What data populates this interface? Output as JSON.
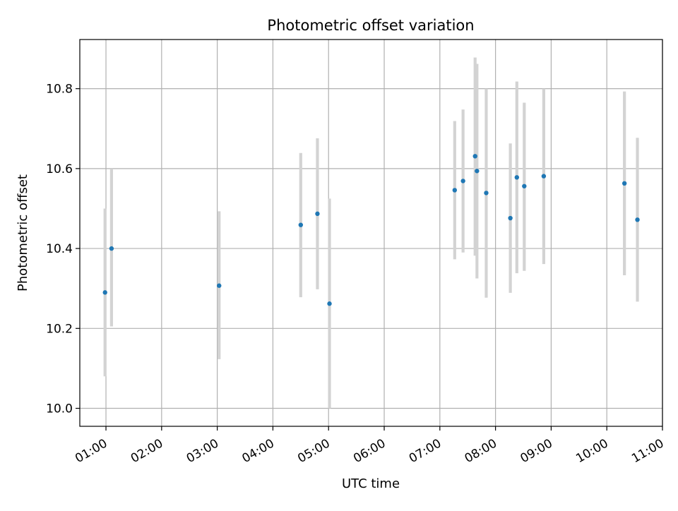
{
  "chart_data": {
    "type": "scatter",
    "title": "Photometric offset variation",
    "xlabel": "UTC time",
    "ylabel": "Photometric offset",
    "x_tick_labels": [
      "01:00",
      "02:00",
      "03:00",
      "04:00",
      "05:00",
      "06:00",
      "07:00",
      "08:00",
      "09:00",
      "10:00",
      "11:00"
    ],
    "x_ticks_hours": [
      1,
      2,
      3,
      4,
      5,
      6,
      7,
      8,
      9,
      10,
      11
    ],
    "xlim_hours": [
      0.53,
      11.0
    ],
    "ylim": [
      9.955,
      10.923
    ],
    "y_ticks": [
      10.0,
      10.2,
      10.4,
      10.6,
      10.8
    ],
    "y_tick_labels": [
      "10.0",
      "10.2",
      "10.4",
      "10.6",
      "10.8"
    ],
    "grid": true,
    "colors": {
      "point": "#1f77b4",
      "errorbar": "#d3d3d3"
    },
    "points": [
      {
        "x": "00:59",
        "y": 10.29,
        "ylo": 10.08,
        "yhi": 10.5
      },
      {
        "x": "01:06",
        "y": 10.4,
        "ylo": 10.205,
        "yhi": 10.6
      },
      {
        "x": "03:02",
        "y": 10.307,
        "ylo": 10.123,
        "yhi": 10.493
      },
      {
        "x": "04:30",
        "y": 10.459,
        "ylo": 10.278,
        "yhi": 10.639
      },
      {
        "x": "04:48",
        "y": 10.487,
        "ylo": 10.298,
        "yhi": 10.676
      },
      {
        "x": "05:01",
        "y": 10.262,
        "ylo": 10.0,
        "yhi": 10.525
      },
      {
        "x": "07:16",
        "y": 10.546,
        "ylo": 10.373,
        "yhi": 10.719
      },
      {
        "x": "07:25",
        "y": 10.569,
        "ylo": 10.39,
        "yhi": 10.748
      },
      {
        "x": "07:38",
        "y": 10.631,
        "ylo": 10.382,
        "yhi": 10.878
      },
      {
        "x": "07:40",
        "y": 10.594,
        "ylo": 10.325,
        "yhi": 10.862
      },
      {
        "x": "07:50",
        "y": 10.539,
        "ylo": 10.277,
        "yhi": 10.8
      },
      {
        "x": "08:16",
        "y": 10.476,
        "ylo": 10.289,
        "yhi": 10.663
      },
      {
        "x": "08:23",
        "y": 10.578,
        "ylo": 10.338,
        "yhi": 10.818
      },
      {
        "x": "08:31",
        "y": 10.556,
        "ylo": 10.344,
        "yhi": 10.765
      },
      {
        "x": "08:52",
        "y": 10.581,
        "ylo": 10.361,
        "yhi": 10.8
      },
      {
        "x": "10:19",
        "y": 10.563,
        "ylo": 10.333,
        "yhi": 10.793
      },
      {
        "x": "10:33",
        "y": 10.472,
        "ylo": 10.267,
        "yhi": 10.677
      }
    ]
  }
}
